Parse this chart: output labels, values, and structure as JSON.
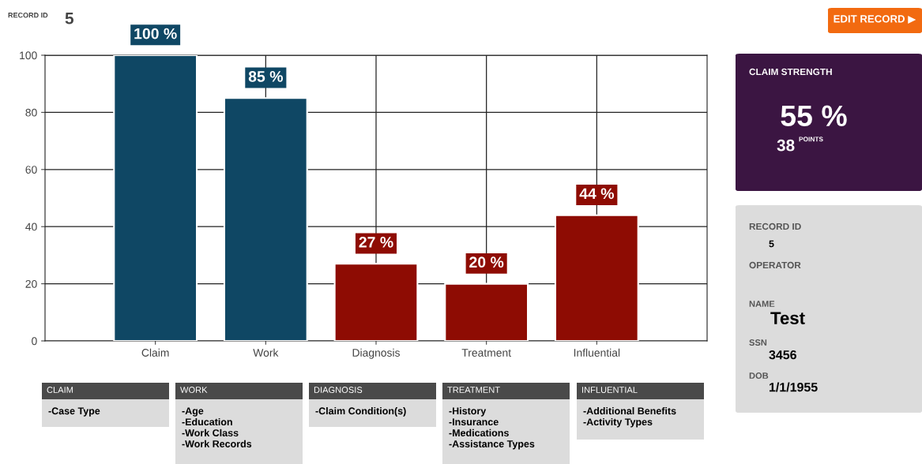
{
  "chart_data": {
    "type": "bar",
    "categories": [
      "Claim",
      "Work",
      "Diagnosis",
      "Treatment",
      "Influential"
    ],
    "values": [
      100,
      85,
      27,
      20,
      44
    ],
    "colors": [
      "#0f4764",
      "#0f4764",
      "#8e0c03",
      "#8e0c03",
      "#8e0c03"
    ],
    "value_labels": [
      "100 %",
      "85 %",
      "27 %",
      "20 %",
      "44 %"
    ],
    "ylim": [
      0,
      100
    ],
    "yticks": [
      0,
      20,
      40,
      60,
      80,
      100
    ],
    "grid": true,
    "annotations": [
      "RECORD ID",
      "5",
      "EDIT RECORD ▶",
      "CLAIM STRENGTH",
      "55 %",
      "38",
      "POINTS",
      "RECORD ID",
      "5",
      "OPERATOR",
      "NAME",
      "Test",
      "SSN",
      "3456",
      "DOB",
      "1/1/1955",
      "CLAIM",
      "-Case Type",
      "WORK",
      "-Age\n-Education\n-Work Class\n-Work Records",
      "DIAGNOSIS",
      "-Claim Condition(s)",
      "TREATMENT",
      "-History\n-Insurance\n-Medications\n-Assistance Types",
      "INFLUENTIAL",
      "-Additional Benefits\n-Activity Types"
    ]
  }
}
